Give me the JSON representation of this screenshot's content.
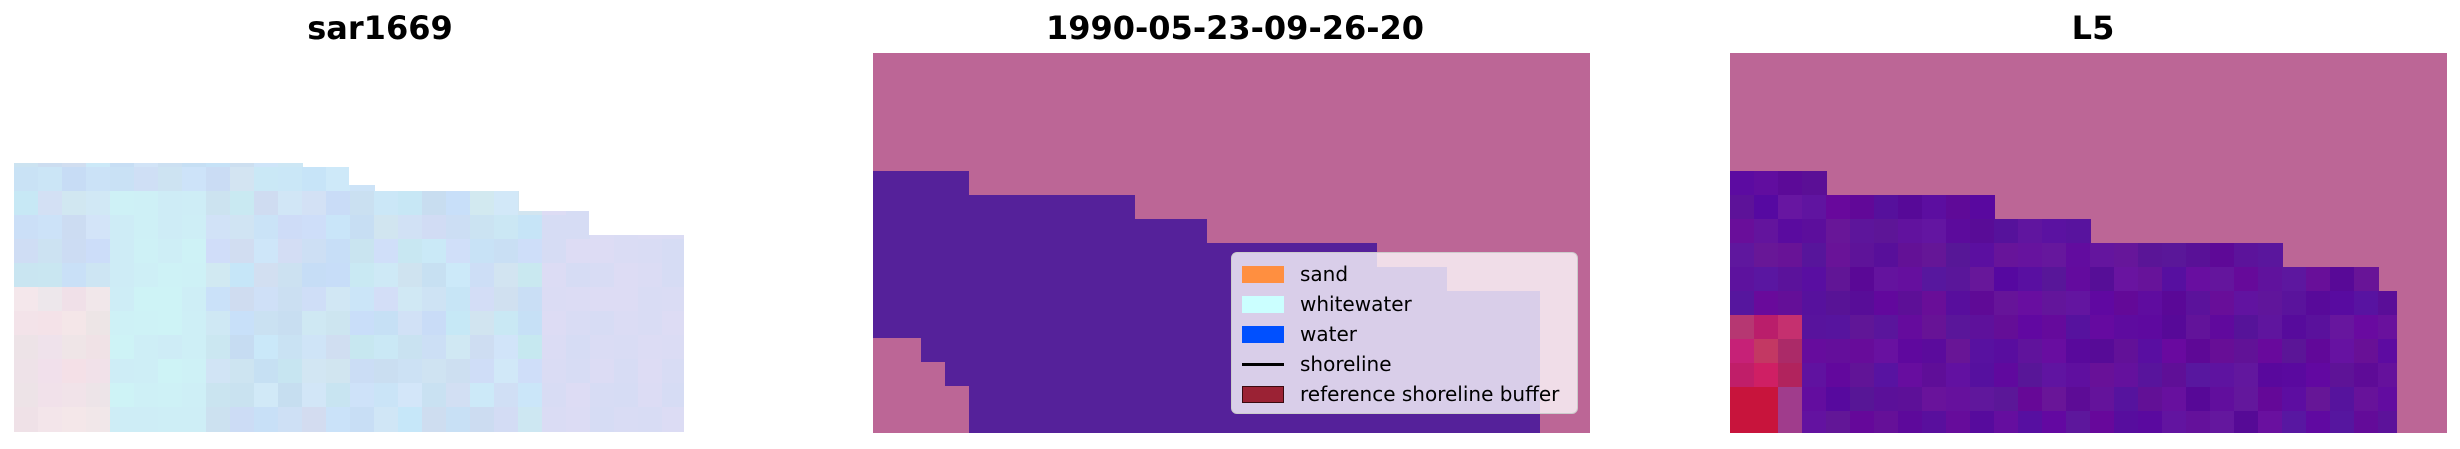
{
  "panels": [
    {
      "title": "sar1669"
    },
    {
      "title": "1990-05-23-09-26-20"
    },
    {
      "title": "L5"
    }
  ],
  "legend": {
    "items": [
      {
        "label": "sand",
        "kind": "patch",
        "color": "#ff8f40"
      },
      {
        "label": "whitewater",
        "kind": "patch",
        "color": "#cbffff"
      },
      {
        "label": "water",
        "kind": "patch",
        "color": "#0050ff"
      },
      {
        "label": "shoreline",
        "kind": "line",
        "color": "#000000"
      },
      {
        "label": "reference shoreline buffer",
        "kind": "patch",
        "color": "#9b2234"
      }
    ]
  },
  "colors": {
    "land": "#bc6696",
    "water_overlay": "#55219a",
    "classifier_water": "#5e0a9e",
    "classifier_red": "#c0123a",
    "sar_blue": "#c7daf2"
  }
}
